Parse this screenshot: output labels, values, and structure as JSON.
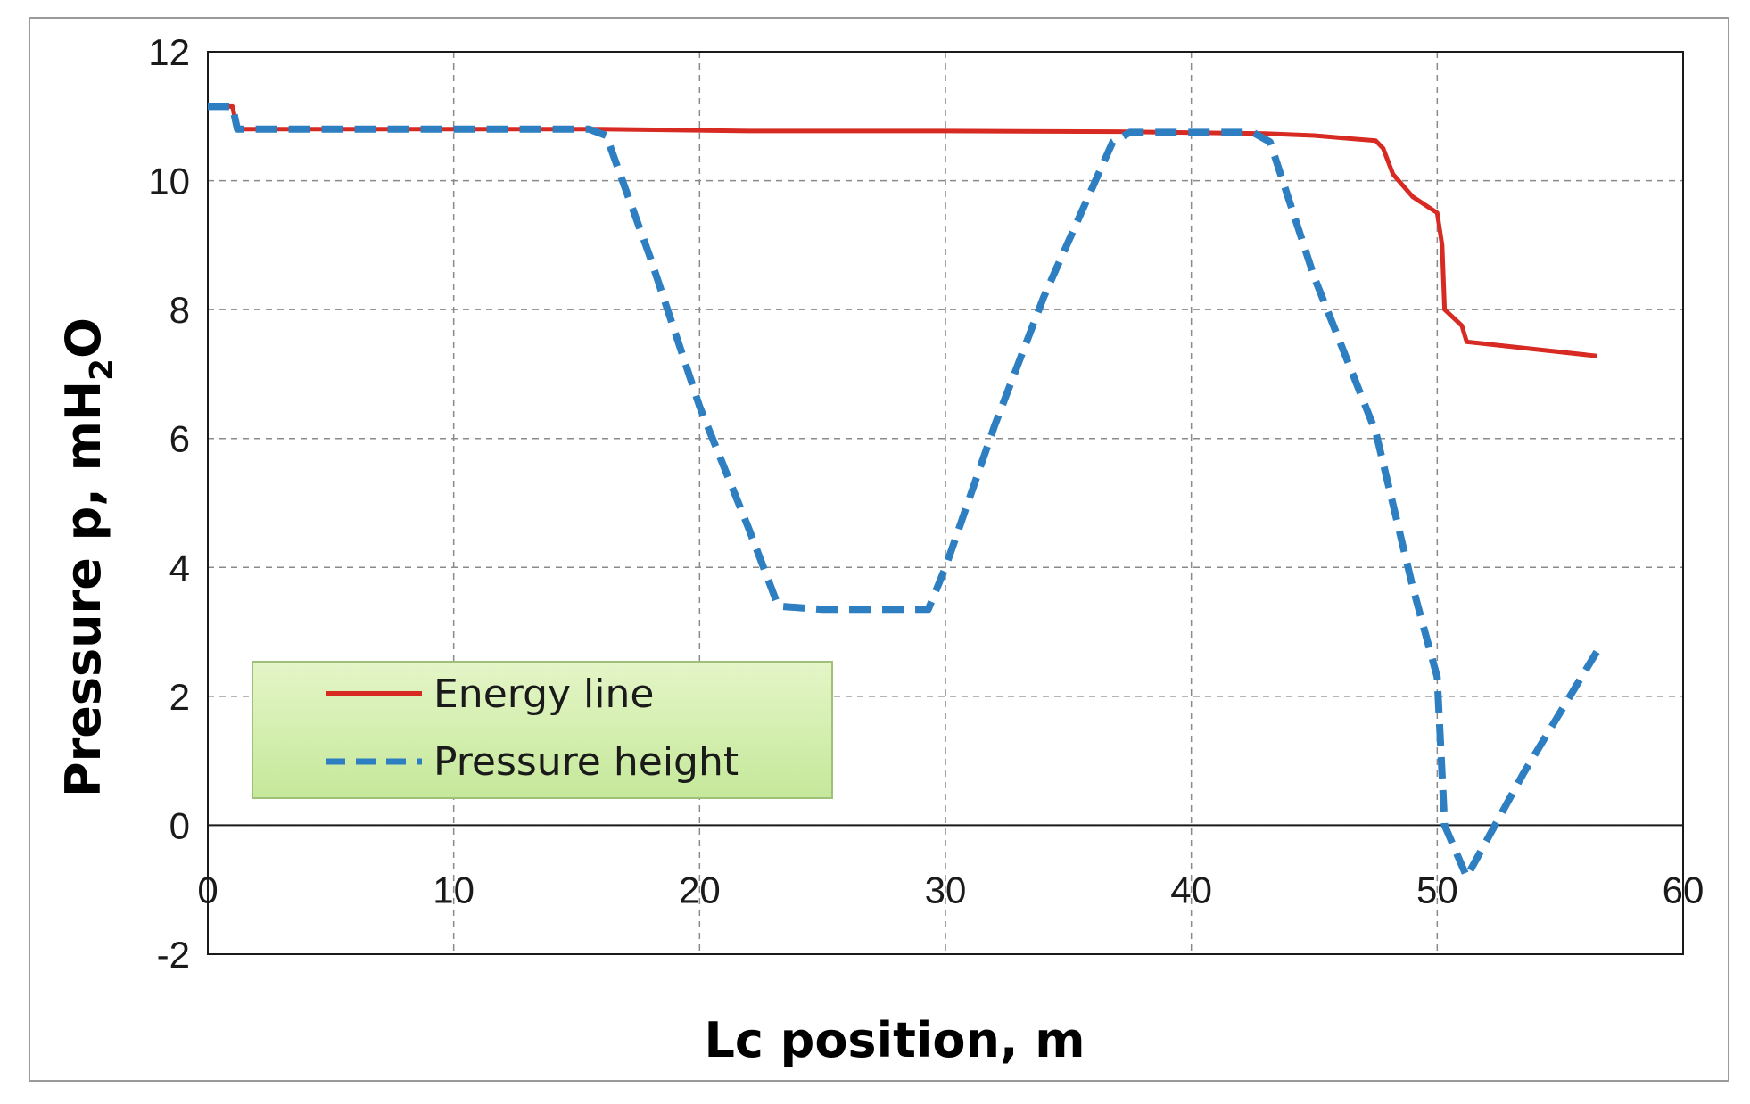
{
  "chart_data": {
    "type": "line",
    "title": "",
    "xlabel": "Lc position, m",
    "ylabel": "Pressure p, mH₂O",
    "ylabel_parts": {
      "main": "Pressure p, mH",
      "subscript": "2",
      "suffix": "O"
    },
    "xlim": [
      0,
      60
    ],
    "ylim": [
      -2,
      12
    ],
    "x_ticks": [
      0,
      10,
      20,
      30,
      40,
      50,
      60
    ],
    "y_ticks": [
      -2,
      0,
      2,
      4,
      6,
      8,
      10,
      12
    ],
    "grid": true,
    "legend_position": "bottom-left",
    "series": [
      {
        "name": "Energy line",
        "style": "solid",
        "color": "#d62a22",
        "x": [
          0,
          1.0,
          1.2,
          16,
          22,
          30,
          37,
          43,
          45,
          47.5,
          47.8,
          48.2,
          49,
          50,
          50.2,
          50.3,
          51.0,
          51.2,
          56.5
        ],
        "y": [
          11.15,
          11.15,
          10.8,
          10.8,
          10.77,
          10.77,
          10.76,
          10.73,
          10.7,
          10.62,
          10.5,
          10.1,
          9.75,
          9.5,
          9.0,
          8.0,
          7.75,
          7.5,
          7.28
        ]
      },
      {
        "name": "Pressure height",
        "style": "dashed",
        "color": "#2d7fc1",
        "x": [
          0,
          1.0,
          1.2,
          15.5,
          16.2,
          18,
          20,
          22,
          23.2,
          25,
          29.3,
          30,
          32,
          34,
          36.8,
          37.5,
          42.5,
          43.2,
          45,
          47.5,
          49,
          50,
          50.3,
          51.2,
          53.5,
          56.5
        ],
        "y": [
          11.15,
          11.15,
          10.8,
          10.8,
          10.7,
          8.8,
          6.5,
          4.6,
          3.4,
          3.35,
          3.35,
          4.0,
          6.2,
          8.2,
          10.6,
          10.75,
          10.75,
          10.6,
          8.5,
          6.1,
          3.7,
          2.3,
          0.0,
          -0.8,
          0.8,
          2.7
        ]
      }
    ]
  }
}
